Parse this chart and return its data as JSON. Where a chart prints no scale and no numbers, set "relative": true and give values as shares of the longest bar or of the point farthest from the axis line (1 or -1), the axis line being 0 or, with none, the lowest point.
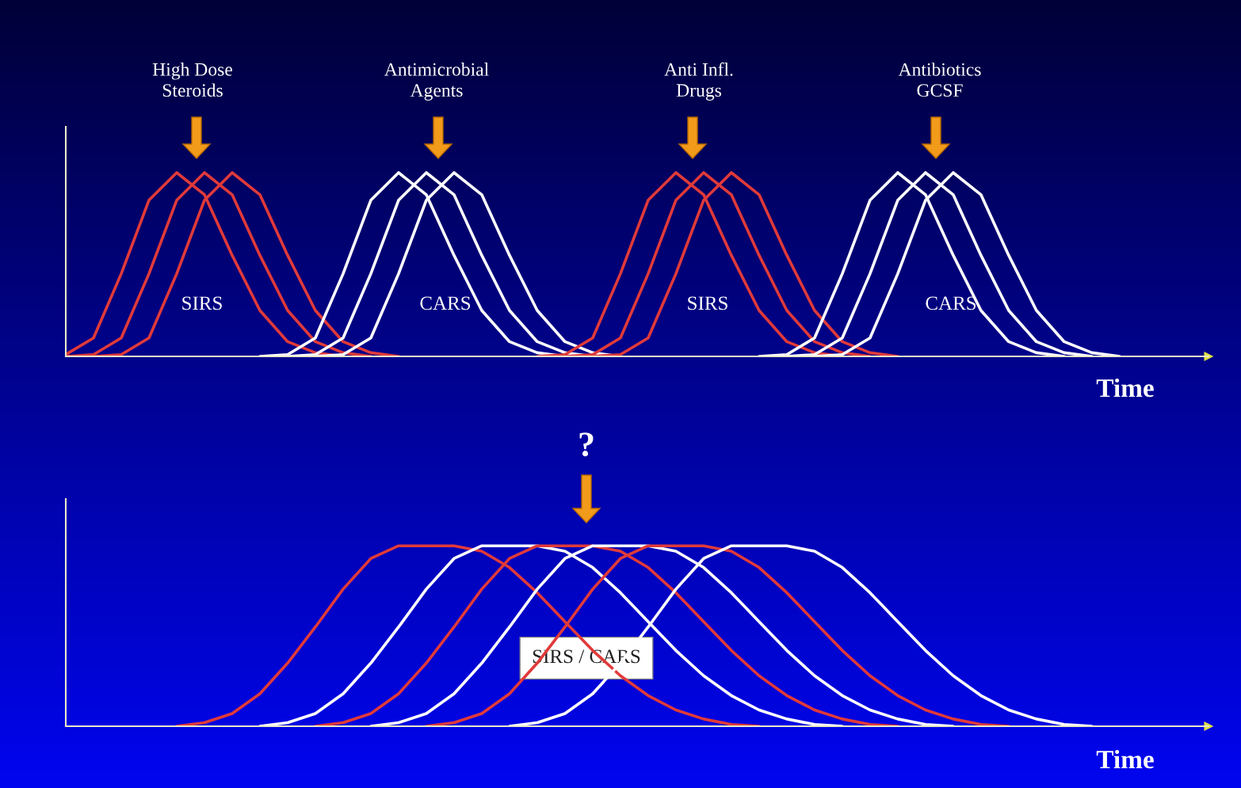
{
  "chart_data": [
    {
      "type": "line",
      "relative": true,
      "xlabel": "Time",
      "categories": [
        null,
        null,
        null,
        null,
        null,
        null,
        null,
        null,
        null,
        null,
        null,
        null,
        null,
        null,
        null,
        null,
        null,
        null,
        null,
        null,
        null,
        null,
        null,
        null,
        null,
        null,
        null,
        null,
        null,
        null,
        null,
        null,
        null,
        null,
        null,
        null,
        null,
        null,
        null,
        null,
        null,
        null
      ],
      "annotations": [
        "High Dose\nSteroids",
        "Antimicrobial\nAgents",
        "Anti Infl.\nDrugs",
        "Antibiotics\nGCSF",
        "SIRS",
        "CARS",
        "SIRS",
        "CARS"
      ],
      "series": [
        {
          "color": "#e03a3a",
          "values": [
            0.01,
            0.1,
            0.45,
            0.85,
            1,
            0.88,
            0.55,
            0.25,
            0.08,
            0.02,
            0,
            null,
            null,
            null,
            null,
            null,
            null,
            null,
            null,
            null,
            null,
            null,
            null,
            null,
            null,
            null,
            null,
            null,
            null,
            null,
            null,
            null,
            null,
            null,
            null,
            null,
            null,
            null,
            null,
            null,
            null,
            null
          ]
        },
        {
          "color": "#e03a3a",
          "values": [
            0,
            0.01,
            0.1,
            0.45,
            0.85,
            1,
            0.88,
            0.55,
            0.25,
            0.08,
            0.02,
            0,
            null,
            null,
            null,
            null,
            null,
            null,
            null,
            null,
            null,
            null,
            null,
            null,
            null,
            null,
            null,
            null,
            null,
            null,
            null,
            null,
            null,
            null,
            null,
            null,
            null,
            null,
            null,
            null,
            null,
            null
          ]
        },
        {
          "color": "#e03a3a",
          "values": [
            null,
            0,
            0.01,
            0.1,
            0.45,
            0.85,
            1,
            0.88,
            0.55,
            0.25,
            0.08,
            0.02,
            0,
            null,
            null,
            null,
            null,
            null,
            null,
            null,
            null,
            null,
            null,
            null,
            null,
            null,
            null,
            null,
            null,
            null,
            null,
            null,
            null,
            null,
            null,
            null,
            null,
            null,
            null,
            null,
            null,
            null
          ]
        },
        {
          "color": "#ffffff",
          "values": [
            null,
            null,
            null,
            null,
            null,
            null,
            null,
            0,
            0.01,
            0.1,
            0.45,
            0.85,
            1,
            0.88,
            0.55,
            0.25,
            0.08,
            0.02,
            0,
            null,
            null,
            null,
            null,
            null,
            null,
            null,
            null,
            null,
            null,
            null,
            null,
            null,
            null,
            null,
            null,
            null,
            null,
            null,
            null,
            null,
            null,
            null
          ]
        },
        {
          "color": "#ffffff",
          "values": [
            null,
            null,
            null,
            null,
            null,
            null,
            null,
            null,
            0,
            0.01,
            0.1,
            0.45,
            0.85,
            1,
            0.88,
            0.55,
            0.25,
            0.08,
            0.02,
            0,
            null,
            null,
            null,
            null,
            null,
            null,
            null,
            null,
            null,
            null,
            null,
            null,
            null,
            null,
            null,
            null,
            null,
            null,
            null,
            null,
            null,
            null
          ]
        },
        {
          "color": "#ffffff",
          "values": [
            null,
            null,
            null,
            null,
            null,
            null,
            null,
            null,
            null,
            0,
            0.01,
            0.1,
            0.45,
            0.85,
            1,
            0.88,
            0.55,
            0.25,
            0.08,
            0.02,
            0,
            null,
            null,
            null,
            null,
            null,
            null,
            null,
            null,
            null,
            null,
            null,
            null,
            null,
            null,
            null,
            null,
            null,
            null,
            null,
            null,
            null
          ]
        },
        {
          "color": "#e03a3a",
          "values": [
            null,
            null,
            null,
            null,
            null,
            null,
            null,
            null,
            null,
            null,
            null,
            null,
            null,
            null,
            null,
            null,
            null,
            0,
            0.01,
            0.1,
            0.45,
            0.85,
            1,
            0.88,
            0.55,
            0.25,
            0.08,
            0.02,
            0,
            null,
            null,
            null,
            null,
            null,
            null,
            null,
            null,
            null,
            null,
            null,
            null,
            null
          ]
        },
        {
          "color": "#e03a3a",
          "values": [
            null,
            null,
            null,
            null,
            null,
            null,
            null,
            null,
            null,
            null,
            null,
            null,
            null,
            null,
            null,
            null,
            null,
            null,
            0,
            0.01,
            0.1,
            0.45,
            0.85,
            1,
            0.88,
            0.55,
            0.25,
            0.08,
            0.02,
            0,
            null,
            null,
            null,
            null,
            null,
            null,
            null,
            null,
            null,
            null,
            null,
            null
          ]
        },
        {
          "color": "#e03a3a",
          "values": [
            null,
            null,
            null,
            null,
            null,
            null,
            null,
            null,
            null,
            null,
            null,
            null,
            null,
            null,
            null,
            null,
            null,
            null,
            null,
            0,
            0.01,
            0.1,
            0.45,
            0.85,
            1,
            0.88,
            0.55,
            0.25,
            0.08,
            0.02,
            0,
            null,
            null,
            null,
            null,
            null,
            null,
            null,
            null,
            null,
            null,
            null
          ]
        },
        {
          "color": "#ffffff",
          "values": [
            null,
            null,
            null,
            null,
            null,
            null,
            null,
            null,
            null,
            null,
            null,
            null,
            null,
            null,
            null,
            null,
            null,
            null,
            null,
            null,
            null,
            null,
            null,
            null,
            null,
            0,
            0.01,
            0.1,
            0.45,
            0.85,
            1,
            0.88,
            0.55,
            0.25,
            0.08,
            0.02,
            0,
            null,
            null,
            null,
            null,
            null
          ]
        },
        {
          "color": "#ffffff",
          "values": [
            null,
            null,
            null,
            null,
            null,
            null,
            null,
            null,
            null,
            null,
            null,
            null,
            null,
            null,
            null,
            null,
            null,
            null,
            null,
            null,
            null,
            null,
            null,
            null,
            null,
            null,
            0,
            0.01,
            0.1,
            0.45,
            0.85,
            1,
            0.88,
            0.55,
            0.25,
            0.08,
            0.02,
            0,
            null,
            null,
            null,
            null
          ]
        },
        {
          "color": "#ffffff",
          "values": [
            null,
            null,
            null,
            null,
            null,
            null,
            null,
            null,
            null,
            null,
            null,
            null,
            null,
            null,
            null,
            null,
            null,
            null,
            null,
            null,
            null,
            null,
            null,
            null,
            null,
            null,
            null,
            0,
            0.01,
            0.1,
            0.45,
            0.85,
            1,
            0.88,
            0.55,
            0.25,
            0.08,
            0.02,
            0,
            null,
            null,
            null
          ]
        }
      ]
    },
    {
      "type": "line",
      "relative": true,
      "xlabel": "Time",
      "categories": [
        null,
        null,
        null,
        null,
        null,
        null,
        null,
        null,
        null,
        null,
        null,
        null,
        null,
        null,
        null,
        null,
        null,
        null,
        null,
        null,
        null,
        null,
        null,
        null,
        null,
        null,
        null,
        null,
        null,
        null,
        null,
        null,
        null,
        null,
        null,
        null,
        null,
        null,
        null,
        null,
        null,
        null
      ],
      "annotations": [
        "?",
        "SIRS / CARS"
      ],
      "series": [
        {
          "color": "#e03a3a",
          "values": [
            null,
            null,
            null,
            null,
            0,
            0.02,
            0.07,
            0.18,
            0.35,
            0.55,
            0.76,
            0.93,
            1,
            1,
            1,
            0.97,
            0.88,
            0.74,
            0.58,
            0.42,
            0.28,
            0.17,
            0.09,
            0.04,
            0.01,
            0,
            null,
            null,
            null,
            null,
            null,
            null,
            null,
            null,
            null,
            null,
            null,
            null,
            null,
            null,
            null,
            null
          ]
        },
        {
          "color": "#ffffff",
          "values": [
            null,
            null,
            null,
            null,
            null,
            null,
            null,
            0,
            0.02,
            0.07,
            0.18,
            0.35,
            0.55,
            0.76,
            0.93,
            1,
            1,
            1,
            0.97,
            0.88,
            0.74,
            0.58,
            0.42,
            0.28,
            0.17,
            0.09,
            0.04,
            0.01,
            0,
            null,
            null,
            null,
            null,
            null,
            null,
            null,
            null,
            null,
            null,
            null,
            null,
            null
          ]
        },
        {
          "color": "#e03a3a",
          "values": [
            null,
            null,
            null,
            null,
            null,
            null,
            null,
            null,
            null,
            0,
            0.02,
            0.07,
            0.18,
            0.35,
            0.55,
            0.76,
            0.93,
            1,
            1,
            1,
            0.97,
            0.88,
            0.74,
            0.58,
            0.42,
            0.28,
            0.17,
            0.09,
            0.04,
            0.01,
            0,
            null,
            null,
            null,
            null,
            null,
            null,
            null,
            null,
            null,
            null,
            null
          ]
        },
        {
          "color": "#ffffff",
          "values": [
            null,
            null,
            null,
            null,
            null,
            null,
            null,
            null,
            null,
            null,
            null,
            0,
            0.02,
            0.07,
            0.18,
            0.35,
            0.55,
            0.76,
            0.93,
            1,
            1,
            1,
            0.97,
            0.88,
            0.74,
            0.58,
            0.42,
            0.28,
            0.17,
            0.09,
            0.04,
            0.01,
            0,
            null,
            null,
            null,
            null,
            null,
            null,
            null,
            null,
            null
          ]
        },
        {
          "color": "#e03a3a",
          "values": [
            null,
            null,
            null,
            null,
            null,
            null,
            null,
            null,
            null,
            null,
            null,
            null,
            null,
            0,
            0.02,
            0.07,
            0.18,
            0.35,
            0.55,
            0.76,
            0.93,
            1,
            1,
            1,
            0.97,
            0.88,
            0.74,
            0.58,
            0.42,
            0.28,
            0.17,
            0.09,
            0.04,
            0.01,
            0,
            null,
            null,
            null,
            null,
            null,
            null,
            null
          ]
        },
        {
          "color": "#ffffff",
          "values": [
            null,
            null,
            null,
            null,
            null,
            null,
            null,
            null,
            null,
            null,
            null,
            null,
            null,
            null,
            null,
            null,
            0,
            0.02,
            0.07,
            0.18,
            0.35,
            0.55,
            0.76,
            0.93,
            1,
            1,
            1,
            0.97,
            0.88,
            0.74,
            0.58,
            0.42,
            0.28,
            0.17,
            0.09,
            0.04,
            0.01,
            0,
            null,
            null,
            null,
            null
          ]
        }
      ]
    }
  ]
}
